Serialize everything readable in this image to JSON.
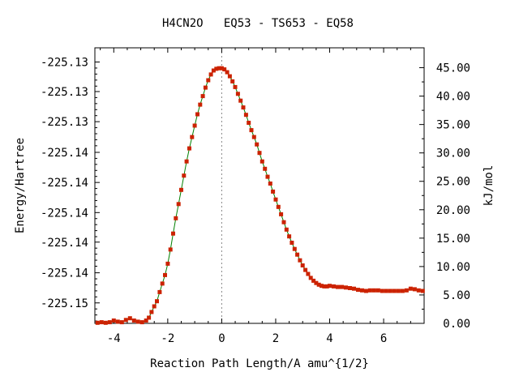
{
  "chart_data": {
    "type": "line",
    "title": "H4CN2O   EQ53 - TS653 - EQ58",
    "xlabel": "Reaction Path Length/A amu^{1/2}",
    "ylabel": "Energy/Hartree",
    "y2label": "kJ/mol",
    "xlim": [
      -4.7,
      7.5
    ],
    "y2lim": [
      0,
      48.5
    ],
    "x_ticks": [
      -4,
      -2,
      0,
      2,
      4,
      6
    ],
    "x_tick_labels": [
      "-4",
      "-2",
      "0",
      "2",
      "4",
      "6"
    ],
    "y_tick_labels": [
      "-225.13",
      "-225.13",
      "-225.13",
      "-225.14",
      "-225.14",
      "-225.14",
      "-225.14",
      "-225.14",
      "-225.15"
    ],
    "y_tick_kj": [
      46.0,
      40.8,
      35.5,
      30.1,
      24.8,
      19.5,
      14.3,
      8.9,
      3.6
    ],
    "y2_ticks": [
      0,
      5,
      10,
      15,
      20,
      25,
      30,
      35,
      40,
      45
    ],
    "y2_tick_labels": [
      "0.00",
      "5.00",
      "10.00",
      "15.00",
      "20.00",
      "25.00",
      "30.00",
      "35.00",
      "40.00",
      "45.00"
    ],
    "ts_x": 0,
    "grid": false,
    "line_color": "#008000",
    "marker_color": "#cc2200",
    "series": [
      {
        "x": [
          -4.6,
          -4.45,
          -4.3,
          -4.15,
          -4.0,
          -3.85,
          -3.7,
          -3.55,
          -3.4,
          -3.25,
          -3.1,
          -2.95,
          -2.8,
          -2.7,
          -2.6,
          -2.5,
          -2.4,
          -2.3,
          -2.2,
          -2.1,
          -2.0,
          -1.9,
          -1.8,
          -1.7,
          -1.6,
          -1.5,
          -1.4,
          -1.3,
          -1.2,
          -1.1,
          -1.0,
          -0.9,
          -0.8,
          -0.7,
          -0.6,
          -0.5,
          -0.4,
          -0.3,
          -0.2,
          -0.1,
          0.0,
          0.1,
          0.2,
          0.3,
          0.4,
          0.5,
          0.6,
          0.7,
          0.8,
          0.9,
          1.0,
          1.1,
          1.2,
          1.3,
          1.4,
          1.5,
          1.6,
          1.7,
          1.8,
          1.9,
          2.0,
          2.1,
          2.2,
          2.3,
          2.4,
          2.5,
          2.6,
          2.7,
          2.8,
          2.9,
          3.0,
          3.1,
          3.2,
          3.3,
          3.4,
          3.5,
          3.6,
          3.7,
          3.8,
          3.9,
          4.0,
          4.15,
          4.3,
          4.45,
          4.6,
          4.75,
          4.9,
          5.05,
          5.2,
          5.35,
          5.5,
          5.65,
          5.8,
          5.95,
          6.1,
          6.25,
          6.4,
          6.55,
          6.7,
          6.85,
          7.0,
          7.15,
          7.3,
          7.45
        ],
        "values": [
          0.1,
          0.2,
          0.1,
          0.2,
          0.5,
          0.3,
          0.2,
          0.6,
          0.9,
          0.5,
          0.3,
          0.2,
          0.5,
          1.0,
          2.0,
          3.0,
          3.9,
          5.5,
          7.0,
          8.5,
          10.5,
          13.0,
          15.8,
          18.5,
          21.0,
          23.5,
          26.0,
          28.5,
          30.8,
          32.8,
          34.8,
          36.8,
          38.5,
          40.0,
          41.5,
          42.8,
          43.8,
          44.5,
          44.8,
          44.9,
          44.9,
          44.7,
          44.2,
          43.5,
          42.6,
          41.6,
          40.4,
          39.2,
          38.0,
          36.7,
          35.3,
          34.0,
          32.8,
          31.5,
          30.0,
          28.5,
          27.2,
          25.8,
          24.6,
          23.2,
          21.8,
          20.5,
          19.2,
          17.8,
          16.5,
          15.3,
          14.2,
          13.1,
          12.1,
          11.1,
          10.2,
          9.4,
          8.7,
          8.0,
          7.5,
          7.1,
          6.8,
          6.6,
          6.5,
          6.5,
          6.6,
          6.5,
          6.4,
          6.4,
          6.3,
          6.2,
          6.1,
          5.9,
          5.8,
          5.7,
          5.8,
          5.8,
          5.8,
          5.7,
          5.7,
          5.7,
          5.7,
          5.7,
          5.7,
          5.8,
          6.1,
          6.0,
          5.8,
          5.7
        ]
      }
    ]
  }
}
